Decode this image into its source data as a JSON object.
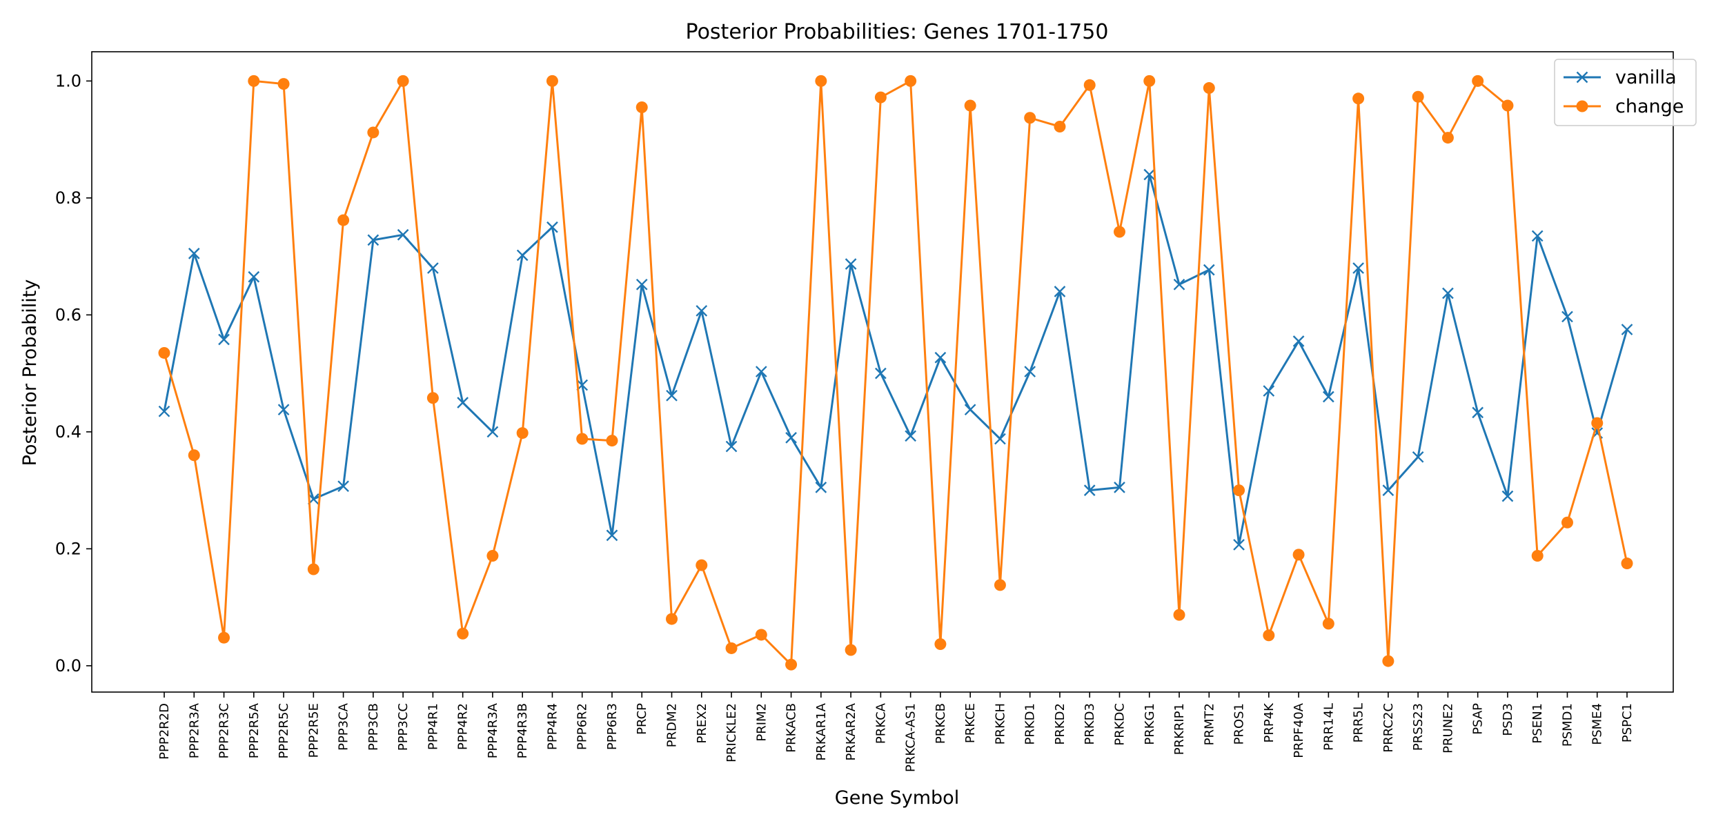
{
  "chart_data": {
    "type": "line",
    "title": "Posterior Probabilities: Genes 1701-1750",
    "xlabel": "Gene Symbol",
    "ylabel": "Posterior Probability",
    "ylim": [
      -0.045,
      1.05
    ],
    "yticks": [
      0.0,
      0.2,
      0.4,
      0.6,
      0.8,
      1.0
    ],
    "ytick_labels": [
      "0.0",
      "0.2",
      "0.4",
      "0.6",
      "0.8",
      "1.0"
    ],
    "grid": false,
    "legend_position": "top-right",
    "categories": [
      "PPP2R2D",
      "PPP2R3A",
      "PPP2R3C",
      "PPP2R5A",
      "PPP2R5C",
      "PPP2R5E",
      "PPP3CA",
      "PPP3CB",
      "PPP3CC",
      "PPP4R1",
      "PPP4R2",
      "PPP4R3A",
      "PPP4R3B",
      "PPP4R4",
      "PPP6R2",
      "PPP6R3",
      "PRCP",
      "PRDM2",
      "PREX2",
      "PRICKLE2",
      "PRIM2",
      "PRKACB",
      "PRKAR1A",
      "PRKAR2A",
      "PRKCA",
      "PRKCA-AS1",
      "PRKCB",
      "PRKCE",
      "PRKCH",
      "PRKD1",
      "PRKD2",
      "PRKD3",
      "PRKDC",
      "PRKG1",
      "PRKRIP1",
      "PRMT2",
      "PROS1",
      "PRP4K",
      "PRPF40A",
      "PRR14L",
      "PRR5L",
      "PRRC2C",
      "PRSS23",
      "PRUNE2",
      "PSAP",
      "PSD3",
      "PSEN1",
      "PSMD1",
      "PSME4",
      "PSPC1"
    ],
    "series": [
      {
        "name": "vanilla",
        "color": "#1f77b4",
        "marker": "x",
        "values": [
          0.435,
          0.705,
          0.558,
          0.665,
          0.438,
          0.285,
          0.307,
          0.728,
          0.737,
          0.68,
          0.45,
          0.4,
          0.702,
          0.75,
          0.48,
          0.223,
          0.652,
          0.462,
          0.607,
          0.375,
          0.503,
          0.39,
          0.305,
          0.687,
          0.5,
          0.393,
          0.527,
          0.438,
          0.388,
          0.503,
          0.64,
          0.3,
          0.305,
          0.84,
          0.652,
          0.677,
          0.207,
          0.47,
          0.555,
          0.46,
          0.68,
          0.3,
          0.357,
          0.637,
          0.433,
          0.29,
          0.735,
          0.597,
          0.398,
          0.575
        ]
      },
      {
        "name": "change",
        "color": "#ff7f0e",
        "marker": "o",
        "values": [
          0.535,
          0.36,
          0.048,
          1.0,
          0.995,
          0.165,
          0.762,
          0.912,
          1.0,
          0.458,
          0.055,
          0.188,
          0.398,
          1.0,
          0.388,
          0.385,
          0.955,
          0.08,
          0.172,
          0.03,
          0.053,
          0.002,
          1.0,
          0.027,
          0.972,
          1.0,
          0.037,
          0.958,
          0.138,
          0.937,
          0.922,
          0.993,
          0.742,
          1.0,
          0.087,
          0.988,
          0.3,
          0.052,
          0.19,
          0.072,
          0.97,
          0.008,
          0.973,
          0.903,
          1.0,
          0.958,
          0.188,
          0.245,
          0.415,
          0.175
        ]
      }
    ]
  }
}
